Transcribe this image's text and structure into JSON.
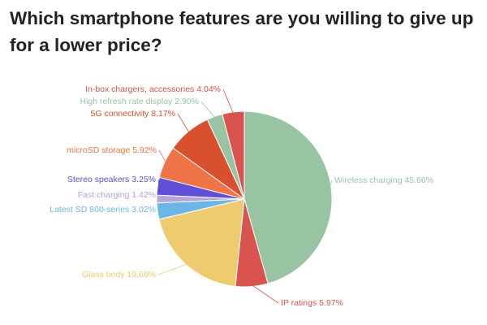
{
  "chart_data": {
    "type": "pie",
    "title": "Which smartphone features are you willing to give up for a lower price?",
    "slices": [
      {
        "label": "Wireless charging",
        "value": 45.66,
        "display": "Wireless charging 45.66%",
        "color": "#99c4a3"
      },
      {
        "label": "IP ratings",
        "value": 5.97,
        "display": "IP ratings 5.97%",
        "color": "#d9534f"
      },
      {
        "label": "Glass body",
        "value": 19.66,
        "display": "Glass body 19.66%",
        "color": "#edcb6e"
      },
      {
        "label": "Latest SD 800-series",
        "value": 3.02,
        "display": "Latest SD 800-series 3.02%",
        "color": "#6cb6e6"
      },
      {
        "label": "Fast charging",
        "value": 1.42,
        "display": "Fast charging 1.42%",
        "color": "#b5a4d6"
      },
      {
        "label": "Stereo speakers",
        "value": 3.25,
        "display": "Stereo speakers 3.25%",
        "color": "#5e4fd6"
      },
      {
        "label": "microSD storage",
        "value": 5.92,
        "display": "microSD storage 5.92%",
        "color": "#ef7448"
      },
      {
        "label": "5G connectivity",
        "value": 8.17,
        "display": "5G connectivity 8.17%",
        "color": "#d9502f"
      },
      {
        "label": "High refresh rate display",
        "value": 2.9,
        "display": "High refresh rate display 2.90%",
        "color": "#99c4a3"
      },
      {
        "label": "In-box chargers, accessories",
        "value": 4.04,
        "display": "In-box chargers, accessories 4.04%",
        "color": "#d9534f"
      }
    ],
    "start_angle": "12 o'clock",
    "direction": "clockwise",
    "legend": "none"
  }
}
